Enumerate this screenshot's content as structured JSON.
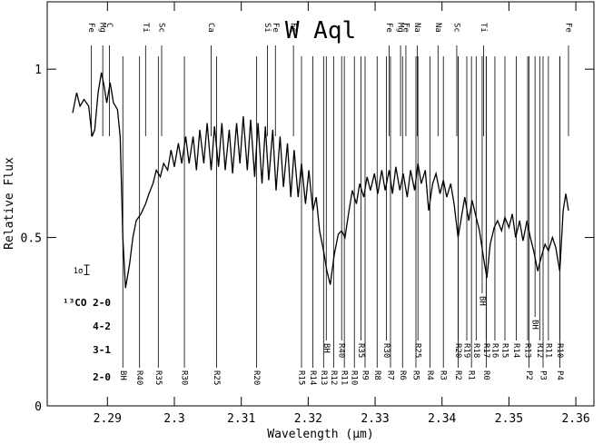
{
  "chart_data": {
    "type": "line",
    "title": "W Aql",
    "x_label": "Wavelength (μm)",
    "y_label": "Relative Flux",
    "color": "#000000",
    "xlim": [
      2.281,
      2.3627
    ],
    "ylim": [
      0,
      1.2
    ],
    "xticks": [
      2.29,
      2.3,
      2.31,
      2.32,
      2.33,
      2.34,
      2.35,
      2.36
    ],
    "yticks": [
      0,
      0.5,
      1
    ],
    "x": [
      2.2848,
      2.2854,
      2.2859,
      2.2865,
      2.2872,
      2.2877,
      2.2881,
      2.2886,
      2.2891,
      2.2895,
      2.2899,
      2.2904,
      2.2909,
      2.2915,
      2.2919,
      2.2923,
      2.2927,
      2.2933,
      2.2938,
      2.2943,
      2.295,
      2.2957,
      2.2962,
      2.2968,
      2.2973,
      2.2979,
      2.2984,
      2.299,
      2.2995,
      2.3,
      2.3006,
      2.3011,
      2.3017,
      2.3022,
      2.3028,
      2.3033,
      2.3038,
      2.3044,
      2.3049,
      2.3055,
      2.306,
      2.3066,
      2.3071,
      2.3076,
      2.3082,
      2.3087,
      2.3093,
      2.3098,
      2.3103,
      2.3109,
      2.3114,
      2.312,
      2.3125,
      2.3131,
      2.3136,
      2.3141,
      2.3147,
      2.3152,
      2.3158,
      2.3163,
      2.3169,
      2.3174,
      2.3179,
      2.3185,
      2.319,
      2.3196,
      2.3201,
      2.3207,
      2.3212,
      2.3217,
      2.3223,
      2.3228,
      2.3233,
      2.3239,
      2.3245,
      2.325,
      2.3255,
      2.3261,
      2.3266,
      2.3272,
      2.3277,
      2.3283,
      2.3288,
      2.3293,
      2.3299,
      2.3304,
      2.331,
      2.3315,
      2.3321,
      2.3326,
      2.3331,
      2.3337,
      2.3342,
      2.3348,
      2.3353,
      2.3359,
      2.3364,
      2.3369,
      2.3375,
      2.338,
      2.3386,
      2.3391,
      2.3397,
      2.3402,
      2.3407,
      2.3413,
      2.3418,
      2.3424,
      2.3429,
      2.3434,
      2.344,
      2.3445,
      2.3451,
      2.3456,
      2.3462,
      2.3467,
      2.3472,
      2.3478,
      2.3483,
      2.3489,
      2.3494,
      2.35,
      2.3505,
      2.351,
      2.3516,
      2.3521,
      2.3527,
      2.3532,
      2.3537,
      2.3543,
      2.3548,
      2.3554,
      2.3559,
      2.3565,
      2.357,
      2.3576,
      2.3581,
      2.3585,
      2.3589
    ],
    "values": [
      0.87,
      0.93,
      0.89,
      0.91,
      0.89,
      0.8,
      0.82,
      0.93,
      0.99,
      0.95,
      0.9,
      0.96,
      0.9,
      0.88,
      0.8,
      0.5,
      0.35,
      0.42,
      0.5,
      0.55,
      0.57,
      0.6,
      0.63,
      0.66,
      0.7,
      0.68,
      0.72,
      0.7,
      0.76,
      0.71,
      0.78,
      0.72,
      0.8,
      0.72,
      0.8,
      0.7,
      0.82,
      0.72,
      0.84,
      0.7,
      0.83,
      0.71,
      0.84,
      0.7,
      0.82,
      0.69,
      0.84,
      0.72,
      0.86,
      0.7,
      0.85,
      0.68,
      0.84,
      0.66,
      0.83,
      0.67,
      0.82,
      0.64,
      0.8,
      0.65,
      0.78,
      0.62,
      0.76,
      0.62,
      0.72,
      0.6,
      0.7,
      0.58,
      0.62,
      0.52,
      0.46,
      0.4,
      0.36,
      0.45,
      0.51,
      0.52,
      0.5,
      0.58,
      0.64,
      0.6,
      0.66,
      0.62,
      0.68,
      0.64,
      0.69,
      0.63,
      0.7,
      0.64,
      0.7,
      0.63,
      0.71,
      0.64,
      0.69,
      0.62,
      0.7,
      0.64,
      0.72,
      0.66,
      0.7,
      0.58,
      0.66,
      0.69,
      0.63,
      0.67,
      0.62,
      0.66,
      0.6,
      0.5,
      0.56,
      0.62,
      0.55,
      0.61,
      0.56,
      0.52,
      0.44,
      0.38,
      0.48,
      0.53,
      0.55,
      0.52,
      0.56,
      0.53,
      0.57,
      0.5,
      0.55,
      0.49,
      0.55,
      0.5,
      0.46,
      0.4,
      0.44,
      0.48,
      0.46,
      0.5,
      0.47,
      0.4,
      0.58,
      0.63,
      0.58
    ],
    "error_bar": {
      "label": "1σ",
      "x": 2.2869,
      "y": 0.404,
      "error": 0.014
    },
    "atomic_lines": [
      {
        "label": "Fe",
        "x": 2.2876
      },
      {
        "label": "Mg",
        "x": 2.2893
      },
      {
        "label": "C",
        "x": 2.2903
      },
      {
        "label": "Ti",
        "x": 2.2957
      },
      {
        "label": "Sc",
        "x": 2.2981
      },
      {
        "label": "Ca",
        "x": 2.3055
      },
      {
        "label": "Si",
        "x": 2.3139
      },
      {
        "label": "Fe",
        "x": 2.3151
      },
      {
        "label": "Fe",
        "x": 2.3178
      },
      {
        "label": "Fe",
        "x": 2.3321
      },
      {
        "label": "Mg",
        "x": 2.3338
      },
      {
        "label": "Fe",
        "x": 2.3346
      },
      {
        "label": "Na",
        "x": 2.3363
      },
      {
        "label": "Na",
        "x": 2.3394
      },
      {
        "label": "Sc",
        "x": 2.3422
      },
      {
        "label": "Ti",
        "x": 2.3462
      },
      {
        "label": "Fe",
        "x": 2.3589
      }
    ],
    "bands": [
      {
        "name": "¹³CO 2-0",
        "lines": [
          {
            "label": "BH",
            "x": 2.346
          }
        ]
      },
      {
        "name": "4-2",
        "lines": [
          {
            "label": "BH",
            "x": 2.3539
          }
        ]
      },
      {
        "name": "3-1",
        "lines": [
          {
            "label": "BH",
            "x": 2.3227
          },
          {
            "label": "R40",
            "x": 2.325
          },
          {
            "label": "R35",
            "x": 2.3279
          },
          {
            "label": "R30",
            "x": 2.3317
          },
          {
            "label": "R25",
            "x": 2.3364
          },
          {
            "label": "R20",
            "x": 2.3424
          },
          {
            "label": "R19",
            "x": 2.3437
          },
          {
            "label": "R18",
            "x": 2.3451
          },
          {
            "label": "R17",
            "x": 2.3466
          },
          {
            "label": "R16",
            "x": 2.3479
          },
          {
            "label": "R15",
            "x": 2.3494
          },
          {
            "label": "R14",
            "x": 2.3511
          },
          {
            "label": "R13",
            "x": 2.3528
          },
          {
            "label": "R12",
            "x": 2.3546
          },
          {
            "label": "R11",
            "x": 2.3559
          },
          {
            "label": "R10",
            "x": 2.3576
          }
        ]
      },
      {
        "name": "2-0",
        "lines": [
          {
            "label": "BH",
            "x": 2.2923
          },
          {
            "label": "R40",
            "x": 2.2948
          },
          {
            "label": "R35",
            "x": 2.2976
          },
          {
            "label": "R30",
            "x": 2.3015
          },
          {
            "label": "R25",
            "x": 2.3063
          },
          {
            "label": "R20",
            "x": 2.3123
          },
          {
            "label": "R15",
            "x": 2.319
          },
          {
            "label": "R14",
            "x": 2.3207
          },
          {
            "label": "R13",
            "x": 2.3223
          },
          {
            "label": "R12",
            "x": 2.3238
          },
          {
            "label": "R11",
            "x": 2.3254
          },
          {
            "label": "R10",
            "x": 2.3269
          },
          {
            "label": "R9",
            "x": 2.3285
          },
          {
            "label": "R8",
            "x": 2.3303
          },
          {
            "label": "R7",
            "x": 2.3323
          },
          {
            "label": "R6",
            "x": 2.3341
          },
          {
            "label": "R5",
            "x": 2.3361
          },
          {
            "label": "R4",
            "x": 2.3382
          },
          {
            "label": "R3",
            "x": 2.3402
          },
          {
            "label": "R2",
            "x": 2.3424
          },
          {
            "label": "R1",
            "x": 2.3444
          },
          {
            "label": "R0",
            "x": 2.3466
          },
          {
            "label": "P2",
            "x": 2.353
          },
          {
            "label": "P3",
            "x": 2.3551
          },
          {
            "label": "P4",
            "x": 2.3576
          }
        ]
      }
    ]
  }
}
